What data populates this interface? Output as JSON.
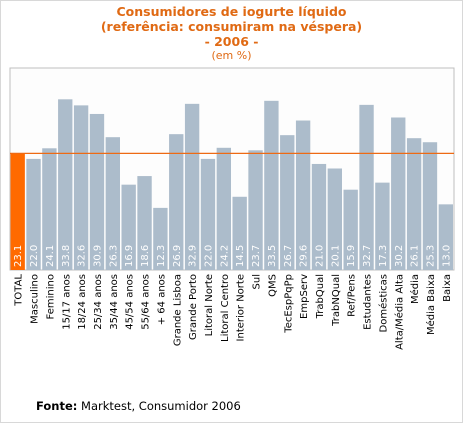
{
  "chart_data": {
    "type": "bar",
    "title": [
      "Consumidores de iogurte líquido",
      "(referência: consumiram na véspera)",
      "- 2006 -"
    ],
    "subtitle": "(em %)",
    "categories": [
      "TOTAL",
      "Masculino",
      "Feminino",
      "15/17 anos",
      "18/24 anos",
      "25/34 anos",
      "35/44 anos",
      "45/54 anos",
      "55/64 anos",
      "+ 64 anos",
      "Grande Lisboa",
      "Grande Porto",
      "Litoral Norte",
      "Litoral Centro",
      "Interior Norte",
      "Sul",
      "QMS",
      "TecEspPqPp",
      "EmpServ",
      "TrabQual",
      "TrabNQual",
      "Ref/Pens",
      "Estudantes",
      "Domésticas",
      "Alta/Média Alta",
      "Média",
      "Média Baixa",
      "Baixa"
    ],
    "value_labels": [
      "23.1",
      "22.0",
      "24.1",
      "33.8",
      "32.6",
      "30.9",
      "26.3",
      "16.9",
      "18.6",
      "12.3",
      "26.9",
      "32.9",
      "22.0",
      "24.2",
      "14.5",
      "23.7",
      "33.5",
      "26.7",
      "29.6",
      "21.0",
      "20.1",
      "15.9",
      "32.7",
      "17.3",
      "30.2",
      "26.1",
      "25.3",
      "13.0"
    ],
    "values": [
      23.1,
      22.0,
      24.1,
      33.8,
      32.6,
      30.9,
      26.3,
      16.9,
      18.6,
      12.3,
      26.9,
      32.9,
      22.0,
      24.2,
      14.5,
      23.7,
      33.5,
      26.7,
      29.6,
      21.0,
      20.1,
      15.9,
      32.7,
      17.3,
      30.2,
      26.1,
      25.3,
      13.0
    ],
    "reference_line": 23.1,
    "highlight_index": 0,
    "ylim": [
      0,
      40
    ],
    "colors": {
      "bar": "#acbccb",
      "highlight": "#ff6a00",
      "reference_line": "#ee6a14",
      "value_label": "#ffffff",
      "plot_bg": "#fdfdfd",
      "plot_border": "#bfbfbf"
    },
    "grid": false,
    "legend": "none"
  },
  "source": {
    "label": "Fonte:",
    "text": " Marktest, Consumidor 2006"
  }
}
